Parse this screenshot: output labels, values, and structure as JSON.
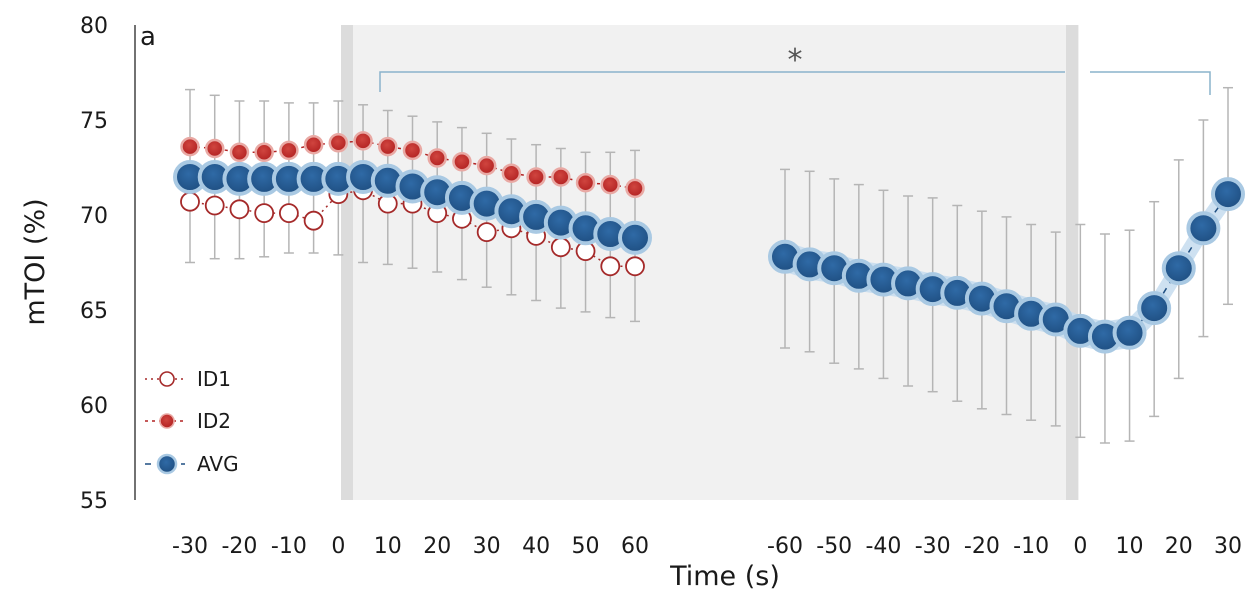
{
  "chart_data": {
    "type": "scatter",
    "panel_label": "a",
    "xlabel": "Time (s)",
    "ylabel": "mTOI (%)",
    "ylim": [
      55,
      80
    ],
    "yticks": [
      "55",
      "60",
      "65",
      "70",
      "75",
      "80"
    ],
    "significance_marker": "*",
    "grid": false,
    "legend_position": "bottom-left",
    "segments": [
      {
        "x_ticks": [
          "-30",
          "-20",
          "-10",
          "0",
          "10",
          "20",
          "30",
          "40",
          "50",
          "60"
        ],
        "x": [
          -30,
          -25,
          -20,
          -15,
          -10,
          -5,
          0,
          5,
          10,
          15,
          20,
          25,
          30,
          35,
          40,
          45,
          50,
          55,
          60
        ],
        "series": [
          {
            "name": "ID1",
            "values": [
              70.7,
              70.5,
              70.3,
              70.1,
              70.1,
              69.7,
              71.1,
              71.3,
              70.6,
              70.6,
              70.1,
              69.8,
              69.1,
              69.3,
              68.9,
              68.3,
              68.1,
              67.3,
              67.3
            ]
          },
          {
            "name": "ID2",
            "values": [
              73.6,
              73.5,
              73.3,
              73.3,
              73.4,
              73.7,
              73.8,
              73.9,
              73.6,
              73.4,
              73.0,
              72.8,
              72.6,
              72.2,
              72.0,
              72.0,
              71.7,
              71.6,
              71.4
            ]
          },
          {
            "name": "AVG",
            "values": [
              72.0,
              72.0,
              71.9,
              71.9,
              71.9,
              71.9,
              71.9,
              72.0,
              71.8,
              71.5,
              71.2,
              70.9,
              70.6,
              70.2,
              69.9,
              69.6,
              69.3,
              69.0,
              68.8
            ],
            "err_upper": [
              76.6,
              76.3,
              76.0,
              76.0,
              75.9,
              75.9,
              76.0,
              75.8,
              75.5,
              75.2,
              74.9,
              74.6,
              74.3,
              74.0,
              73.7,
              73.5,
              73.3,
              73.3,
              73.4
            ],
            "err_lower": [
              67.5,
              67.7,
              67.7,
              67.8,
              68.0,
              68.0,
              67.9,
              67.5,
              67.4,
              67.2,
              67.0,
              66.6,
              66.2,
              65.8,
              65.5,
              65.1,
              64.9,
              64.6,
              64.4
            ],
            "band_width": 0.5
          }
        ]
      },
      {
        "x_ticks": [
          "-60",
          "-50",
          "-40",
          "-30",
          "-20",
          "-10",
          "0",
          "10",
          "20",
          "30"
        ],
        "x": [
          -60,
          -55,
          -50,
          -45,
          -40,
          -35,
          -30,
          -25,
          -20,
          -15,
          -10,
          -5,
          0,
          5,
          10,
          15,
          20,
          25,
          30
        ],
        "series": [
          {
            "name": "AVG",
            "values": [
              67.8,
              67.4,
              67.2,
              66.8,
              66.6,
              66.4,
              66.1,
              65.9,
              65.6,
              65.2,
              64.8,
              64.5,
              63.9,
              63.6,
              63.8,
              65.1,
              67.2,
              69.3,
              71.1
            ],
            "err_upper": [
              72.4,
              72.3,
              71.9,
              71.6,
              71.3,
              71.0,
              70.9,
              70.5,
              70.2,
              69.9,
              69.5,
              69.1,
              69.5,
              69.0,
              69.2,
              70.7,
              72.9,
              75.0,
              76.7
            ],
            "err_lower": [
              63.0,
              62.8,
              62.2,
              61.9,
              61.4,
              61.0,
              60.7,
              60.2,
              59.8,
              59.5,
              59.2,
              58.9,
              58.3,
              58.0,
              58.1,
              59.4,
              61.4,
              63.6,
              65.3
            ],
            "band_width": 0.8
          }
        ]
      }
    ]
  },
  "colors": {
    "id1": "#a52a2a",
    "id2": "#b22222",
    "avg": "#1f4f82",
    "band": "#c6dcee",
    "shade": "#f1f1f1",
    "divider": "#dcdcdc",
    "errorbar": "#b5b5b5",
    "bracket": "#8ab3cc"
  }
}
